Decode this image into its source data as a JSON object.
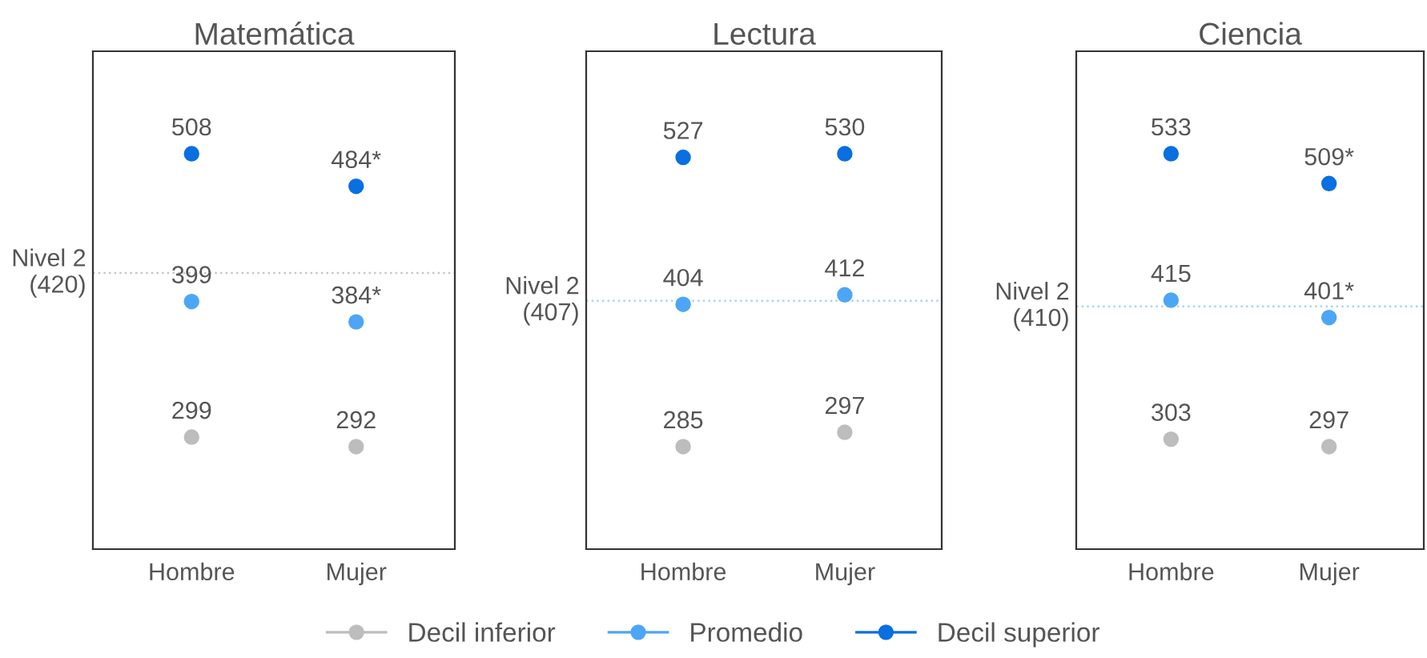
{
  "chart_data": [
    {
      "type": "scatter",
      "title": "Matemática",
      "categories": [
        "Hombre",
        "Mujer"
      ],
      "tick_labels": "x",
      "marker": "circle",
      "legend": "bottom",
      "series": [
        {
          "name": "Decil inferior",
          "color": "#bdbdbd",
          "values": [
            299,
            292
          ],
          "value_labels": [
            "299",
            "292"
          ]
        },
        {
          "name": "Promedio",
          "color": "#4da6f5",
          "values": [
            399,
            384
          ],
          "value_labels": [
            "399",
            "384*"
          ]
        },
        {
          "name": "Decil superior",
          "color": "#0a6fe0",
          "values": [
            508,
            484
          ],
          "value_labels": [
            "508",
            "484*"
          ]
        }
      ],
      "ref_lines": [
        {
          "axis": "y",
          "value": 420,
          "label": "Nivel 2\n(420)",
          "color": "#c0c8d0",
          "line_style": "dotted"
        }
      ]
    },
    {
      "type": "scatter",
      "title": "Lectura",
      "categories": [
        "Hombre",
        "Mujer"
      ],
      "tick_labels": "x",
      "marker": "circle",
      "series": [
        {
          "color": "#bdbdbd",
          "values": [
            285,
            297
          ],
          "value_labels": [
            "285",
            "297"
          ]
        },
        {
          "color": "#4da6f5",
          "values": [
            404,
            412
          ],
          "value_labels": [
            "404",
            "412"
          ]
        },
        {
          "color": "#0a6fe0",
          "values": [
            527,
            530
          ],
          "value_labels": [
            "527",
            "530"
          ]
        }
      ],
      "ref_lines": [
        {
          "axis": "y",
          "value": 407,
          "label": "Nivel 2\n(407)",
          "color": "#a8d4fa",
          "line_style": "dotted"
        }
      ]
    },
    {
      "type": "scatter",
      "title": "Ciencia",
      "categories": [
        "Hombre",
        "Mujer"
      ],
      "tick_labels": "x",
      "marker": "circle",
      "series": [
        {
          "color": "#bdbdbd",
          "values": [
            303,
            297
          ],
          "value_labels": [
            "303",
            "297"
          ]
        },
        {
          "color": "#4da6f5",
          "values": [
            415,
            401
          ],
          "value_labels": [
            "415",
            "401*"
          ]
        },
        {
          "color": "#0a6fe0",
          "values": [
            533,
            509
          ],
          "value_labels": [
            "533",
            "509*"
          ]
        }
      ],
      "ref_lines": [
        {
          "axis": "y",
          "value": 410,
          "label": "Nivel 2\n(410)",
          "color": "#a8d4fa",
          "line_style": "dotted"
        }
      ]
    }
  ]
}
